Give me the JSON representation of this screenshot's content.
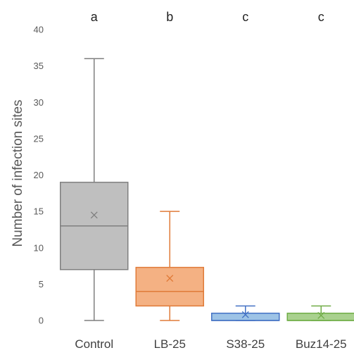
{
  "chart_data": {
    "type": "box",
    "title": "",
    "xlabel": "",
    "ylabel": "Number of infection sites",
    "ylim": [
      0,
      40
    ],
    "yticks": [
      0,
      5,
      10,
      15,
      20,
      25,
      30,
      35,
      40
    ],
    "grid": false,
    "legend": "none",
    "categories": [
      "Control",
      "LB-25",
      "S38-25",
      "Buz14-25"
    ],
    "significance_letters": [
      "a",
      "b",
      "c",
      "c"
    ],
    "boxes": [
      {
        "category": "Control",
        "min": 0,
        "q1": 7,
        "median": 13,
        "q3": 19,
        "max": 36,
        "mean": 14.5,
        "fill": "#bfbfbf",
        "stroke": "#7f7f7f"
      },
      {
        "category": "LB-25",
        "min": 0,
        "q1": 2,
        "median": 4,
        "q3": 7.3,
        "max": 15,
        "mean": 5.8,
        "fill": "#f4b183",
        "stroke": "#e07b39"
      },
      {
        "category": "S38-25",
        "min": 0,
        "q1": 0,
        "median": 0,
        "q3": 1,
        "max": 2,
        "mean": 0.8,
        "fill": "#9dc3e6",
        "stroke": "#4472c4"
      },
      {
        "category": "Buz14-25",
        "min": 0,
        "q1": 0,
        "median": 0,
        "q3": 1,
        "max": 2,
        "mean": 0.7,
        "fill": "#a9d18e",
        "stroke": "#70ad47"
      }
    ]
  }
}
